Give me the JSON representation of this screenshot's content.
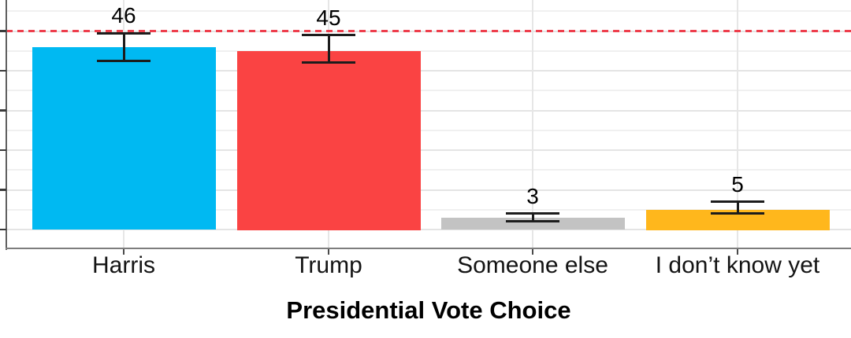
{
  "chart_data": {
    "type": "bar",
    "title": "",
    "xlabel": "Presidential Vote Choice",
    "ylabel": "",
    "categories": [
      "Harris",
      "Trump",
      "Someone else",
      "I don’t know yet"
    ],
    "category_slugs": [
      "harris",
      "trump",
      "someone-else",
      "i-dont-know-yet"
    ],
    "values": [
      46,
      45,
      3,
      5
    ],
    "value_labels": [
      "46",
      "45",
      "3",
      "5"
    ],
    "error_bars": {
      "low": [
        42.5,
        42,
        2,
        4
      ],
      "high": [
        49.5,
        49,
        4,
        7
      ]
    },
    "bar_colors": [
      "#00b9f2",
      "#fa4343",
      "#c3c3c3",
      "#ffb71c"
    ],
    "reference_line": {
      "value": 50,
      "style": "dashed",
      "color": "#ee3e4c"
    },
    "y_axis": {
      "major_ticks": [
        0,
        10,
        20,
        30,
        40,
        50
      ],
      "minor_gridlines": [
        5,
        15,
        25,
        35,
        45,
        55
      ],
      "tick_labels_visible": false,
      "visible_range": [
        -5,
        57
      ]
    },
    "grid": {
      "horizontal": "major+minor",
      "vertical": "major-at-categories"
    },
    "legend": false,
    "colors": {
      "background": "#ffffff",
      "grid_major": "#e4e4e4",
      "grid_minor": "#f0f0f0",
      "axis_line": "#7d7d7d",
      "tick": "#3a3a3a",
      "error_bar": "#1c1c1c",
      "text": "#000000"
    }
  }
}
